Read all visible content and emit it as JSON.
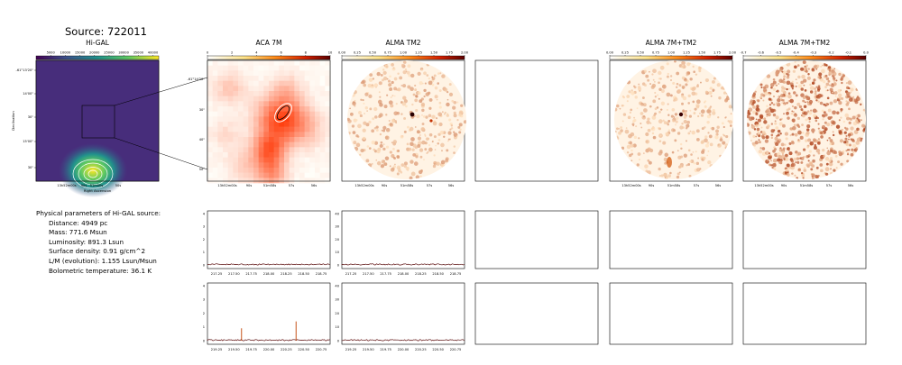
{
  "source_title": "Source: 722011",
  "panels": [
    {
      "title": "Hi-GAL",
      "colorbar_ticks": [
        "5000",
        "10000",
        "15000",
        "20000",
        "25000",
        "30000",
        "35000",
        "40000"
      ],
      "colormap": "viridis",
      "xticks": [
        "13h52m00s",
        "90s",
        "51m50s",
        "50s"
      ],
      "yticks": [
        "-61°13'20\"",
        "14'00\"",
        "30\"",
        "15'00\"",
        "30\""
      ],
      "xlabel": "Right Ascension",
      "ylabel": "Declination"
    },
    {
      "title": "ACA 7M",
      "colorbar_ticks": [
        "0",
        "2",
        "4",
        "6",
        "8",
        "10"
      ],
      "colormap": "hot_r",
      "xticks": [
        "13h52m00s",
        "90s",
        "51m58s",
        "57s",
        "56s"
      ],
      "yticks": [
        "-61°14'20\"",
        "30\"",
        "40\"",
        "50\""
      ]
    },
    {
      "title": "ALMA TM2",
      "colorbar_ticks": [
        "0.00",
        "0.25",
        "0.50",
        "0.75",
        "1.00",
        "1.25",
        "1.50",
        "1.75",
        "2.00"
      ],
      "colormap": "hot_r",
      "xticks": [
        "13h52m00s",
        "90s",
        "51m58s",
        "57s",
        "56s"
      ]
    },
    {
      "title": "",
      "empty": true
    },
    {
      "title": "ALMA 7M+TM2",
      "colorbar_ticks": [
        "0.00",
        "0.25",
        "0.50",
        "0.75",
        "1.00",
        "1.25",
        "1.50",
        "1.75",
        "2.00"
      ],
      "colormap": "hot_r",
      "xticks": [
        "13h52m00s",
        "90s",
        "51m58s",
        "57s",
        "56s"
      ]
    },
    {
      "title": "ALMA 7M+TM2",
      "colorbar_ticks": [
        "-0.7",
        "-0.6",
        "-0.5",
        "-0.4",
        "-0.3",
        "-0.2",
        "-0.1",
        "0.0"
      ],
      "colormap": "hot_r",
      "xticks": [
        "13h52m00s",
        "90s",
        "51m58s",
        "57s",
        "56s"
      ]
    }
  ],
  "parameters": {
    "heading": "Physical parameters of Hi-GAL source:",
    "lines": [
      "Distance: 4949 pc",
      "Mass: 771.6 Msun",
      "Luminosity: 891.3 Lsun",
      "Surface density: 0.91 g/cm^2",
      "L/M (evolution): 1.155 Lsun/Msun",
      "Bolometric temperature: 36.1 K"
    ]
  },
  "spectra_rows": [
    {
      "xticks": [
        "217.25",
        "217.50",
        "217.75",
        "218.00",
        "218.25",
        "218.50",
        "218.75"
      ],
      "yticks": [
        "0",
        "1",
        "2",
        "3",
        "4"
      ],
      "yticks2": [
        "0",
        "10",
        "20",
        "30",
        "40"
      ]
    },
    {
      "xticks": [
        "219.25",
        "219.50",
        "219.75",
        "220.00",
        "220.25",
        "220.50",
        "220.75"
      ],
      "yticks": [
        "0",
        "1",
        "2",
        "3",
        "4"
      ],
      "yticks2": [
        "0",
        "10",
        "20",
        "30",
        "40"
      ]
    }
  ],
  "chart_data": [
    {
      "type": "line",
      "title": "",
      "x_range": [
        217.1,
        218.9
      ],
      "ylim": [
        0,
        4
      ],
      "series": [
        {
          "values_description": "flat ~0.05 noise"
        }
      ]
    },
    {
      "type": "line",
      "title": "",
      "x_range": [
        217.1,
        218.9
      ],
      "ylim": [
        0,
        40
      ],
      "series": [
        {
          "values_description": "flat ~0.3 noise"
        }
      ]
    },
    {
      "type": "line",
      "title": "",
      "x_range": [
        219.1,
        220.9
      ],
      "ylim": [
        0,
        4
      ],
      "peaks": [
        {
          "x": 219.6,
          "y": 0.9
        },
        {
          "x": 220.4,
          "y": 1.4
        }
      ]
    },
    {
      "type": "line",
      "title": "",
      "x_range": [
        219.1,
        220.9
      ],
      "ylim": [
        0,
        40
      ],
      "series": [
        {
          "values_description": "flat ~0.3 noise"
        }
      ]
    }
  ]
}
